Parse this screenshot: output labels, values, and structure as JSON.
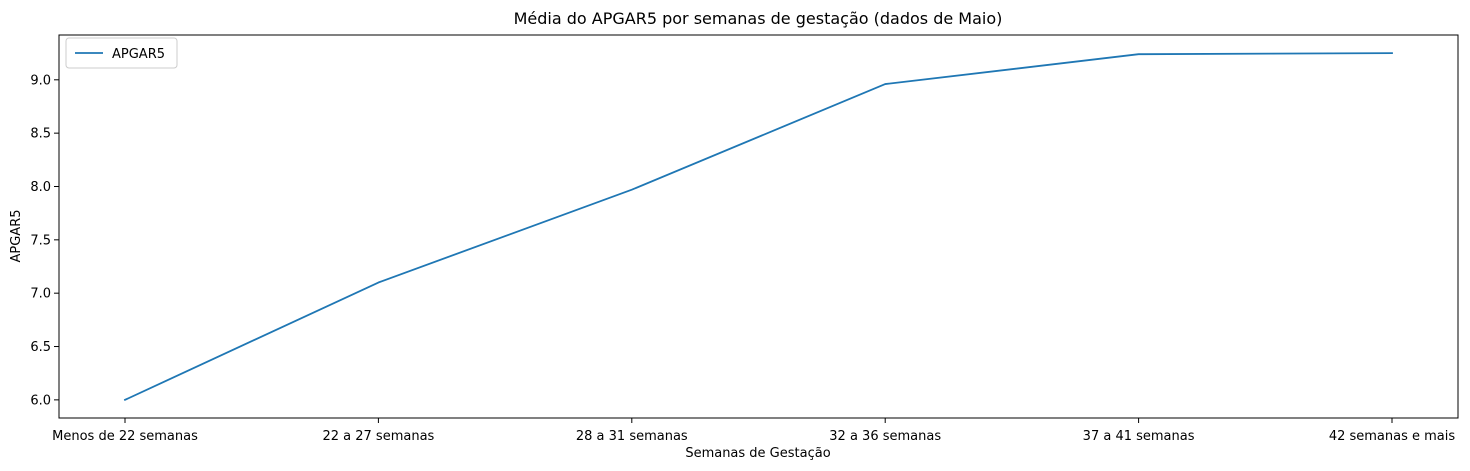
{
  "chart_data": {
    "type": "line",
    "title": "Média do APGAR5 por semanas de gestação (dados de Maio)",
    "xlabel": "Semanas de Gestação",
    "ylabel": "APGAR5",
    "categories": [
      "Menos de 22 semanas",
      "22 a 27 semanas",
      "28 a 31 semanas",
      "32 a 36 semanas",
      "37 a 41 semanas",
      "42 semanas e mais"
    ],
    "series": [
      {
        "name": "APGAR5",
        "color": "#1f77b4",
        "values": [
          6.0,
          7.1,
          7.97,
          8.96,
          9.24,
          9.25
        ]
      }
    ],
    "ylim": [
      5.83,
      9.42
    ],
    "yticks": [
      6.0,
      6.5,
      7.0,
      7.5,
      8.0,
      8.5,
      9.0
    ],
    "ytick_labels": [
      "6.0",
      "6.5",
      "7.0",
      "7.5",
      "8.0",
      "8.5",
      "9.0"
    ],
    "grid": false,
    "legend_position": "upper-left"
  }
}
